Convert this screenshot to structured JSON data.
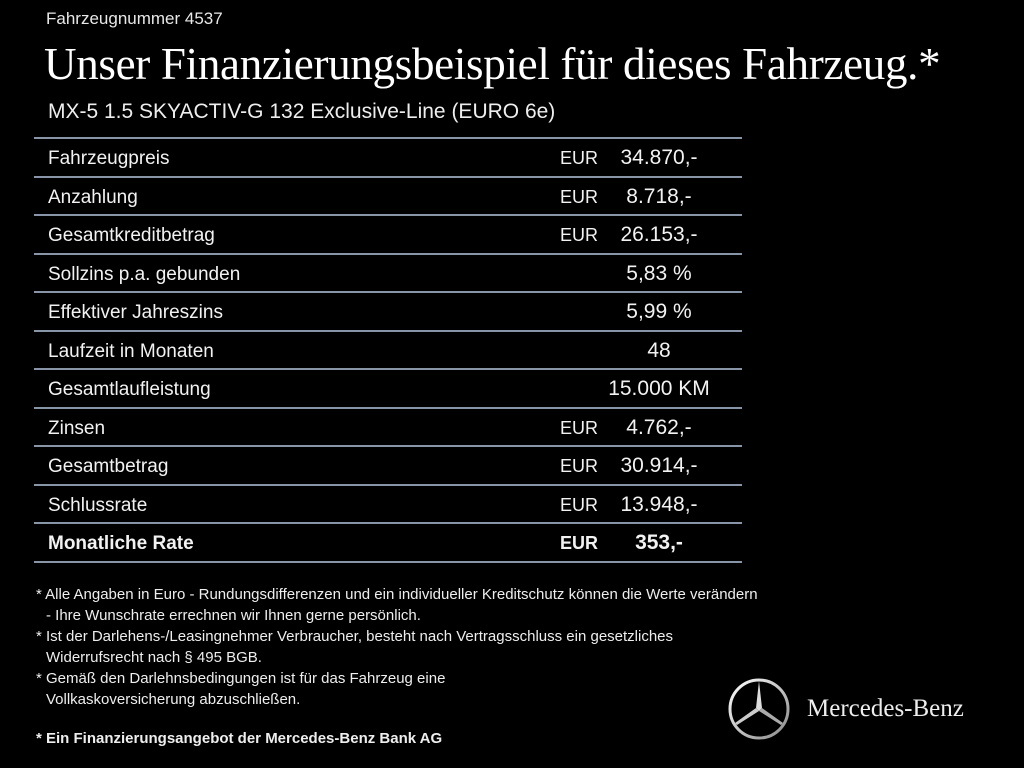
{
  "vehicle_number": "Fahrzeugnummer 4537",
  "title": "Unser Finanzierungsbeispiel für dieses Fahrzeug.*",
  "model": "MX-5 1.5 SKYACTIV-G 132 Exclusive-Line (EURO 6e)",
  "rows": [
    {
      "label": "Fahrzeugpreis",
      "currency": "EUR",
      "value": "34.870,-"
    },
    {
      "label": "Anzahlung",
      "currency": "EUR",
      "value": "8.718,-"
    },
    {
      "label": "Gesamtkreditbetrag",
      "currency": "EUR",
      "value": "26.153,-"
    },
    {
      "label": "Sollzins p.a. gebunden",
      "currency": "",
      "value": "5,83 %"
    },
    {
      "label": "Effektiver Jahreszins",
      "currency": "",
      "value": "5,99 %"
    },
    {
      "label": "Laufzeit in Monaten",
      "currency": "",
      "value": "48"
    },
    {
      "label": "Gesamtlaufleistung",
      "currency": "",
      "value": "15.000 KM"
    },
    {
      "label": "Zinsen",
      "currency": "EUR",
      "value": "4.762,-"
    },
    {
      "label": "Gesamtbetrag",
      "currency": "EUR",
      "value": "30.914,-"
    },
    {
      "label": "Schlussrate",
      "currency": "EUR",
      "value": "13.948,-"
    },
    {
      "label": "Monatliche Rate",
      "currency": "EUR",
      "value": "353,-"
    }
  ],
  "notes": [
    "* Alle Angaben in Euro - Rundungsdifferenzen und ein individueller Kreditschutz können die Werte verändern - Ihre Wunschrate errechnen wir Ihnen gerne persönlich.",
    "* Ist der Darlehens-/Leasingnehmer Verbraucher, besteht nach Vertragsschluss ein gesetzliches Widerrufsrecht nach § 495 BGB.",
    "* Gemäß den Darlehnsbedingungen ist für das Fahrzeug eine Vollkaskoversicherung abzuschließen."
  ],
  "bank_note": "* Ein Finanzierungsangebot der Mercedes-Benz Bank AG",
  "brand": "Mercedes-Benz",
  "colors": {
    "background": "#000000",
    "divider": "#8795a6"
  }
}
